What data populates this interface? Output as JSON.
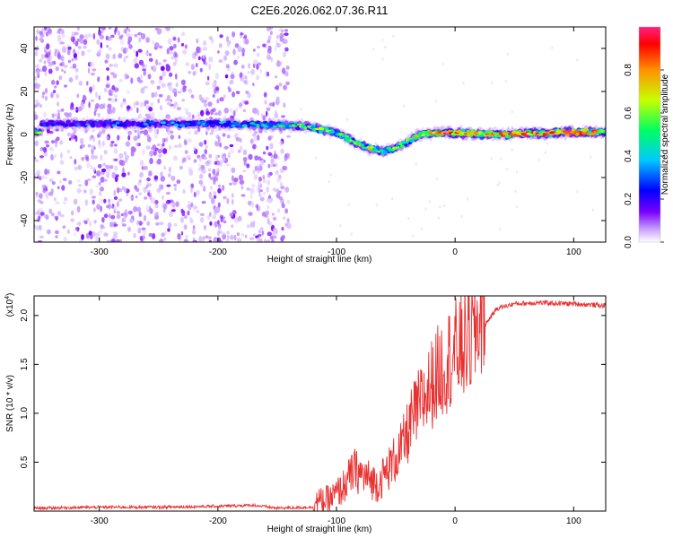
{
  "figure_title": "C2E6.2026.062.07.36.R11",
  "chart_data": [
    {
      "type": "heatmap",
      "title": "C2E6.2026.062.07.36.R11",
      "xlabel": "Height of straight line (km)",
      "ylabel": "Frequency (Hz)",
      "xlim": [
        -355,
        127
      ],
      "ylim": [
        -50,
        50
      ],
      "x_ticks": [
        -300,
        -200,
        -100,
        0,
        100
      ],
      "x_tick_labels": [
        "-300",
        "-200",
        "-100",
        "0",
        "100"
      ],
      "y_ticks": [
        -40,
        -20,
        0,
        20,
        40
      ],
      "y_tick_labels": [
        "-40",
        "-20",
        "0",
        "20",
        "40"
      ],
      "colorbar": {
        "label": "Normalized spectral amplitude",
        "range": [
          0,
          1
        ],
        "ticks": [
          0.0,
          0.2,
          0.4,
          0.6,
          0.8
        ],
        "tick_labels": [
          "0.0",
          "0.2",
          "0.4",
          "0.6",
          "0.8"
        ],
        "colors": [
          "#ffffff",
          "#c8a0ff",
          "#7a00ff",
          "#0000ff",
          "#00c8ff",
          "#00ff60",
          "#c8ff00",
          "#ff9000",
          "#ff0000",
          "#ff2080"
        ]
      },
      "ridge": {
        "description_points": [
          {
            "x": -350,
            "y": 5,
            "amp": 0.35
          },
          {
            "x": -200,
            "y": 5,
            "amp": 0.4
          },
          {
            "x": -130,
            "y": 4,
            "amp": 0.55
          },
          {
            "x": -100,
            "y": 1,
            "amp": 0.6
          },
          {
            "x": -80,
            "y": -5,
            "amp": 0.65
          },
          {
            "x": -60,
            "y": -8,
            "amp": 0.6
          },
          {
            "x": -45,
            "y": -5,
            "amp": 0.55
          },
          {
            "x": -30,
            "y": 0,
            "amp": 0.7
          },
          {
            "x": -10,
            "y": 1,
            "amp": 0.85
          },
          {
            "x": 30,
            "y": 0,
            "amp": 0.75
          },
          {
            "x": 95,
            "y": 1,
            "amp": 0.9
          },
          {
            "x": 127,
            "y": 1,
            "amp": 0.7
          }
        ]
      }
    },
    {
      "type": "line",
      "xlabel": "Height of straight line (km)",
      "ylabel": "SNR (10 * v/v)",
      "y_multiplier": "(x10",
      "y_multiplier_exp": "4",
      "y_multiplier_close": ")",
      "xlim": [
        -355,
        127
      ],
      "ylim": [
        0,
        2.2
      ],
      "x_ticks": [
        -300,
        -200,
        -100,
        0,
        100
      ],
      "x_tick_labels": [
        "-300",
        "-200",
        "-100",
        "0",
        "100"
      ],
      "y_ticks": [
        0.5,
        1.0,
        1.5,
        2.0
      ],
      "y_tick_labels": [
        "0.5",
        "1.0",
        "1.5",
        "2.0"
      ],
      "series": [
        {
          "name": "SNR",
          "color": "#e83030",
          "x": [
            -355,
            -300,
            -250,
            -200,
            -170,
            -150,
            -120,
            -105,
            -95,
            -85,
            -75,
            -65,
            -55,
            -45,
            -35,
            -25,
            -15,
            -5,
            5,
            15,
            25,
            35,
            50,
            70,
            100,
            127
          ],
          "y": [
            0.03,
            0.04,
            0.04,
            0.05,
            0.06,
            0.03,
            0.04,
            0.08,
            0.18,
            0.35,
            0.28,
            0.22,
            0.38,
            0.55,
            0.85,
            1.05,
            1.25,
            1.4,
            1.5,
            1.6,
            1.9,
            2.07,
            2.12,
            2.13,
            2.12,
            2.1
          ]
        }
      ]
    }
  ]
}
